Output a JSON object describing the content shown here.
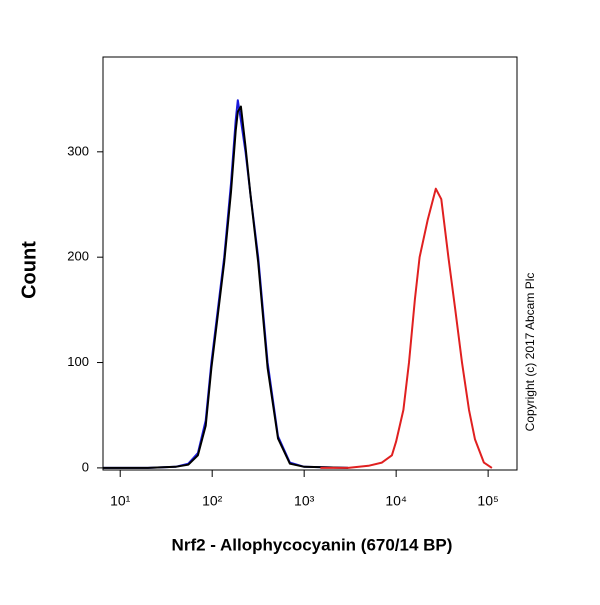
{
  "chart_data": {
    "type": "line",
    "xlabel": "Nrf2 - Allophycocyanin (670/14 BP)",
    "ylabel": "Count",
    "annotation": "Copyright (c) 2017 Abcam Plc",
    "xscale": "log",
    "xlim": [
      6.5,
      206000
    ],
    "ylim": [
      -2,
      390
    ],
    "xticks": [
      {
        "value": 10,
        "label": "10¹"
      },
      {
        "value": 100,
        "label": "10²"
      },
      {
        "value": 1000,
        "label": "10³"
      },
      {
        "value": 10000,
        "label": "10⁴"
      },
      {
        "value": 100000,
        "label": "10⁵"
      }
    ],
    "yticks": [
      0,
      100,
      200,
      300
    ],
    "series": [
      {
        "color": "#1a1adb",
        "x": [
          6.5,
          20,
          40,
          55,
          70,
          85,
          98,
          115,
          135,
          160,
          180,
          190,
          205,
          230,
          260,
          316,
          400,
          520,
          700,
          1000,
          3000
        ],
        "values": [
          0,
          0,
          1,
          4,
          14,
          45,
          100,
          150,
          200,
          270,
          330,
          349,
          330,
          300,
          260,
          200,
          100,
          30,
          5,
          1,
          0
        ]
      },
      {
        "color": "#000000",
        "x": [
          6.5,
          20,
          40,
          55,
          70,
          85,
          98,
          115,
          135,
          160,
          180,
          190,
          205,
          230,
          260,
          316,
          400,
          520,
          700,
          1000,
          3000
        ],
        "values": [
          0,
          0,
          1,
          3,
          12,
          40,
          95,
          145,
          195,
          262,
          320,
          338,
          343,
          305,
          260,
          195,
          95,
          28,
          4,
          1,
          0
        ]
      },
      {
        "color": "#e02020",
        "x": [
          1500,
          3000,
          5000,
          7000,
          9000,
          10000,
          12000,
          13800,
          16000,
          18000,
          22000,
          27000,
          31000,
          37000,
          44000,
          52000,
          62000,
          72000,
          90000,
          110000
        ],
        "values": [
          0,
          0,
          2,
          5,
          12,
          25,
          55,
          100,
          160,
          200,
          235,
          265,
          255,
          200,
          150,
          100,
          55,
          27,
          5,
          0
        ]
      }
    ]
  }
}
